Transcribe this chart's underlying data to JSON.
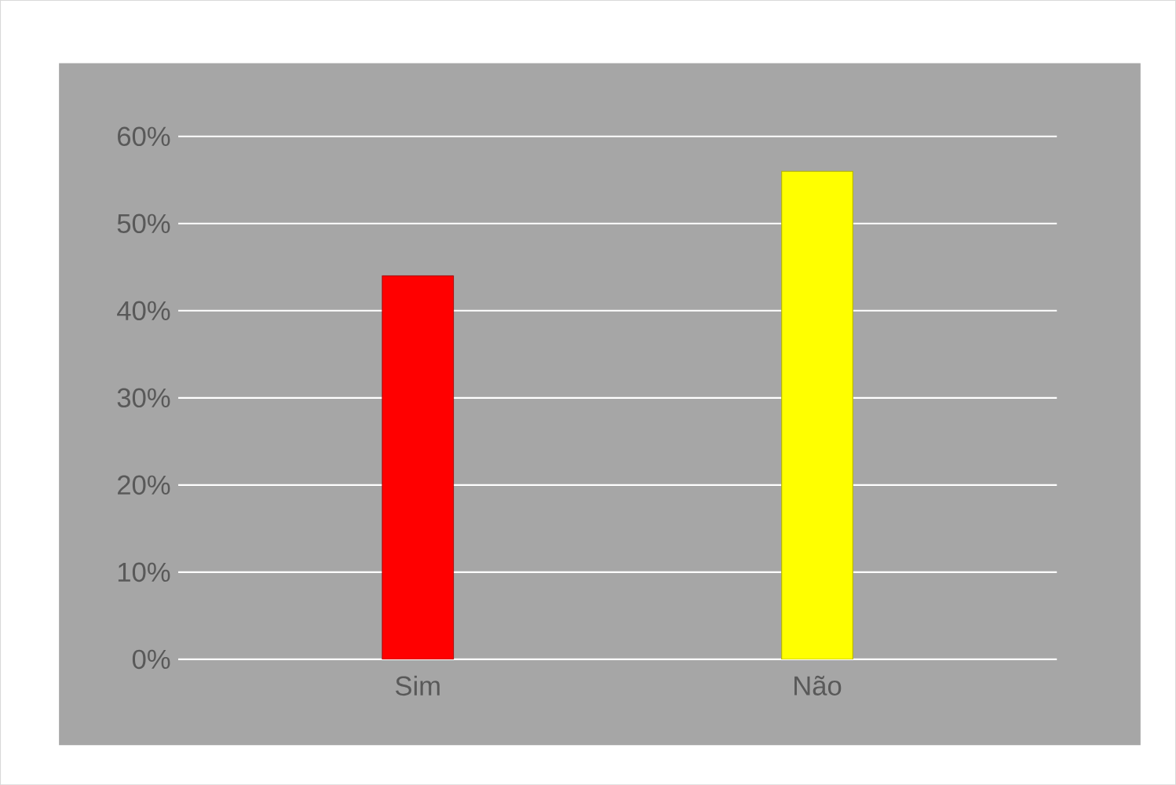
{
  "chart_data": {
    "type": "bar",
    "categories": [
      "Sim",
      "Não"
    ],
    "values": [
      44,
      56
    ],
    "colors": [
      "#ff0000",
      "#ffff00"
    ],
    "ylim": [
      0,
      60
    ],
    "yticks": [
      {
        "value": 0,
        "label": "0%"
      },
      {
        "value": 10,
        "label": "10%"
      },
      {
        "value": 20,
        "label": "20%"
      },
      {
        "value": 30,
        "label": "30%"
      },
      {
        "value": 40,
        "label": "40%"
      },
      {
        "value": 50,
        "label": "50%"
      },
      {
        "value": 60,
        "label": "60%"
      }
    ],
    "grid": "y"
  }
}
